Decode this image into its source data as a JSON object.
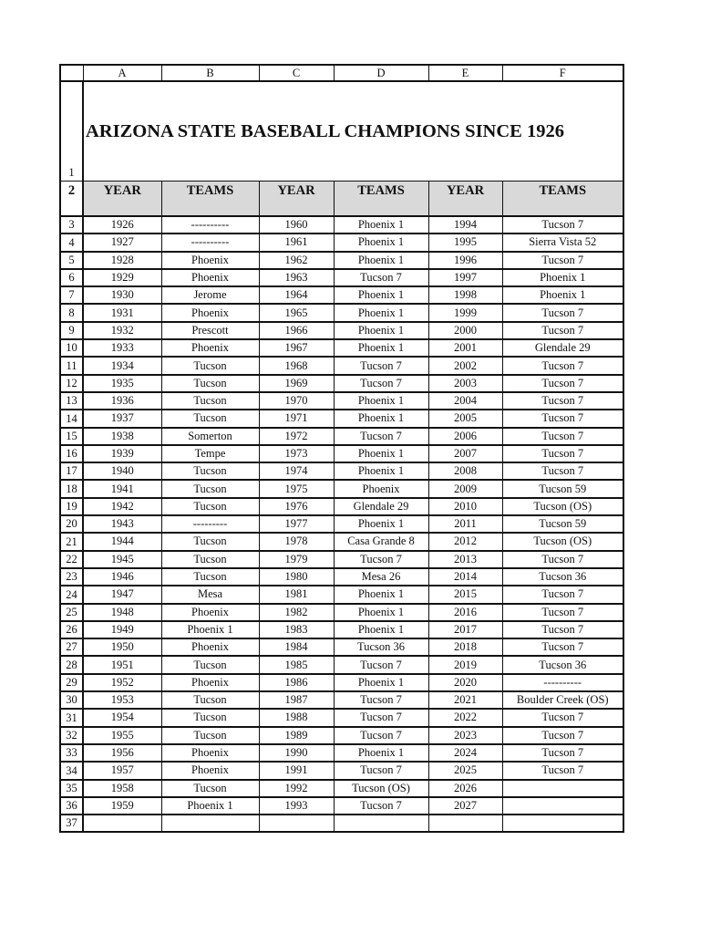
{
  "column_letters": [
    "A",
    "B",
    "C",
    "D",
    "E",
    "F"
  ],
  "title": "ARIZONA STATE BASEBALL CHAMPIONS SINCE 1926",
  "headers": [
    "YEAR",
    "TEAMS",
    "YEAR",
    "TEAMS",
    "YEAR",
    "TEAMS"
  ],
  "first_data_row_number": 3,
  "rows": [
    [
      "1926",
      "----------",
      "1960",
      "Phoenix 1",
      "1994",
      "Tucson 7"
    ],
    [
      "1927",
      "----------",
      "1961",
      "Phoenix 1",
      "1995",
      "Sierra Vista 52"
    ],
    [
      "1928",
      "Phoenix",
      "1962",
      "Phoenix 1",
      "1996",
      "Tucson 7"
    ],
    [
      "1929",
      "Phoenix",
      "1963",
      "Tucson 7",
      "1997",
      "Phoenix 1"
    ],
    [
      "1930",
      "Jerome",
      "1964",
      "Phoenix 1",
      "1998",
      "Phoenix 1"
    ],
    [
      "1931",
      "Phoenix",
      "1965",
      "Phoenix 1",
      "1999",
      "Tucson 7"
    ],
    [
      "1932",
      "Prescott",
      "1966",
      "Phoenix 1",
      "2000",
      "Tucson 7"
    ],
    [
      "1933",
      "Phoenix",
      "1967",
      "Phoenix 1",
      "2001",
      "Glendale 29"
    ],
    [
      "1934",
      "Tucson",
      "1968",
      "Tucson 7",
      "2002",
      "Tucson 7"
    ],
    [
      "1935",
      "Tucson",
      "1969",
      "Tucson 7",
      "2003",
      "Tucson 7"
    ],
    [
      "1936",
      "Tucson",
      "1970",
      "Phoenix 1",
      "2004",
      "Tucson 7"
    ],
    [
      "1937",
      "Tucson",
      "1971",
      "Phoenix 1",
      "2005",
      "Tucson 7"
    ],
    [
      "1938",
      "Somerton",
      "1972",
      "Tucson 7",
      "2006",
      "Tucson 7"
    ],
    [
      "1939",
      "Tempe",
      "1973",
      "Phoenix 1",
      "2007",
      "Tucson 7"
    ],
    [
      "1940",
      "Tucson",
      "1974",
      "Phoenix 1",
      "2008",
      "Tucson 7"
    ],
    [
      "1941",
      "Tucson",
      "1975",
      "Phoenix",
      "2009",
      "Tucson 59"
    ],
    [
      "1942",
      "Tucson",
      "1976",
      "Glendale 29",
      "2010",
      "Tucson (OS)"
    ],
    [
      "1943",
      "---------",
      "1977",
      "Phoenix 1",
      "2011",
      "Tucson 59"
    ],
    [
      "1944",
      "Tucson",
      "1978",
      "Casa Grande 8",
      "2012",
      "Tucson (OS)"
    ],
    [
      "1945",
      "Tucson",
      "1979",
      "Tucson 7",
      "2013",
      "Tucson 7"
    ],
    [
      "1946",
      "Tucson",
      "1980",
      "Mesa 26",
      "2014",
      "Tucson 36"
    ],
    [
      "1947",
      "Mesa",
      "1981",
      "Phoenix 1",
      "2015",
      "Tucson 7"
    ],
    [
      "1948",
      "Phoenix",
      "1982",
      "Phoenix 1",
      "2016",
      "Tucson 7"
    ],
    [
      "1949",
      "Phoenix 1",
      "1983",
      "Phoenix 1",
      "2017",
      "Tucson 7"
    ],
    [
      "1950",
      "Phoenix",
      "1984",
      "Tucson 36",
      "2018",
      "Tucson 7"
    ],
    [
      "1951",
      "Tucson",
      "1985",
      "Tucson 7",
      "2019",
      "Tucson 36"
    ],
    [
      "1952",
      "Phoenix",
      "1986",
      "Phoenix 1",
      "2020",
      "----------"
    ],
    [
      "1953",
      "Tucson",
      "1987",
      "Tucson 7",
      "2021",
      "Boulder Creek (OS)"
    ],
    [
      "1954",
      "Tucson",
      "1988",
      "Tucson 7",
      "2022",
      "Tucson 7"
    ],
    [
      "1955",
      "Tucson",
      "1989",
      "Tucson 7",
      "2023",
      "Tucson 7"
    ],
    [
      "1956",
      "Phoenix",
      "1990",
      "Phoenix 1",
      "2024",
      "Tucson 7"
    ],
    [
      "1957",
      "Phoenix",
      "1991",
      "Tucson 7",
      "2025",
      "Tucson 7"
    ],
    [
      "1958",
      "Tucson",
      "1992",
      "Tucson (OS)",
      "2026",
      ""
    ],
    [
      "1959",
      "Phoenix 1",
      "1993",
      "Tucson 7",
      "2027",
      ""
    ],
    [
      "",
      "",
      "",
      "",
      "",
      ""
    ]
  ],
  "colors": {
    "header_fill": "#d9d9d9",
    "grid": "#111111"
  }
}
